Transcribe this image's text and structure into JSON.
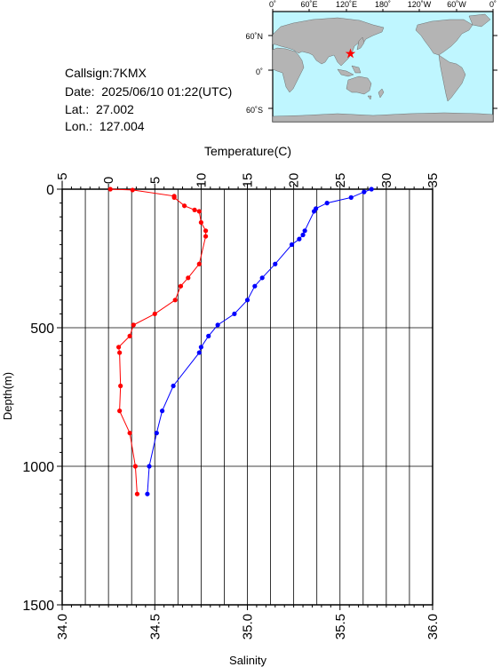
{
  "info": {
    "callsign": "Callsign:7KMX",
    "date": "Date:  2025/06/10 01:22(UTC)",
    "lat": "Lat.:  27.002",
    "lon": "Lon.:  127.004"
  },
  "map": {
    "lon_labels": [
      "0˚",
      "60˚E",
      "120˚E",
      "180˚",
      "120˚W",
      "60˚W",
      "0˚"
    ],
    "lat_labels": [
      "60˚N",
      "0˚",
      "60˚S"
    ],
    "colors": {
      "ocean": "#bff6ff",
      "land": "#b4b4b4",
      "marker": "#ff0000"
    },
    "marker_lon": 127.004,
    "marker_lat": 27.002
  },
  "chart_data": {
    "type": "line",
    "ylabel": "Depth(m)",
    "y_ticks": [
      "0",
      "500",
      "1000",
      "1500"
    ],
    "ylim": [
      1500,
      0
    ],
    "grid": true,
    "temperature_axis": {
      "label": "Temperature(C)",
      "position": "top",
      "range": [
        -5,
        35
      ],
      "ticks": [
        "−5",
        "0",
        "5",
        "10",
        "15",
        "20",
        "25",
        "30",
        "35"
      ]
    },
    "salinity_axis": {
      "label": "Salinity",
      "position": "bottom",
      "range": [
        34.0,
        36.0
      ],
      "ticks": [
        "34.0",
        "34.5",
        "35.0",
        "35.5",
        "36.0"
      ]
    },
    "series": [
      {
        "key": "temperature",
        "axis": "top",
        "color": "#ff0000",
        "depth": [
          0,
          3,
          25,
          30,
          60,
          75,
          80,
          120,
          150,
          170,
          270,
          320,
          350,
          400,
          450,
          490,
          530,
          570,
          590,
          710,
          800,
          880,
          1000,
          1100
        ],
        "values": [
          0.2,
          2.6,
          7.1,
          7.1,
          8.2,
          9.3,
          9.8,
          10.0,
          10.5,
          10.5,
          9.8,
          8.6,
          7.8,
          7.2,
          5.0,
          2.7,
          2.3,
          1.1,
          1.2,
          1.3,
          1.2,
          2.3,
          2.9,
          3.1
        ]
      },
      {
        "key": "salinity",
        "axis": "bottom",
        "color": "#0000ff",
        "depth": [
          0,
          10,
          30,
          50,
          70,
          80,
          150,
          165,
          180,
          200,
          270,
          320,
          350,
          400,
          450,
          490,
          530,
          570,
          590,
          710,
          800,
          880,
          1000,
          1100
        ],
        "values": [
          35.67,
          35.63,
          35.56,
          35.43,
          35.37,
          35.36,
          35.31,
          35.3,
          35.28,
          35.24,
          35.15,
          35.08,
          35.04,
          35.0,
          34.93,
          34.84,
          34.79,
          34.75,
          34.74,
          34.6,
          34.54,
          34.51,
          34.47,
          34.46
        ]
      }
    ]
  }
}
